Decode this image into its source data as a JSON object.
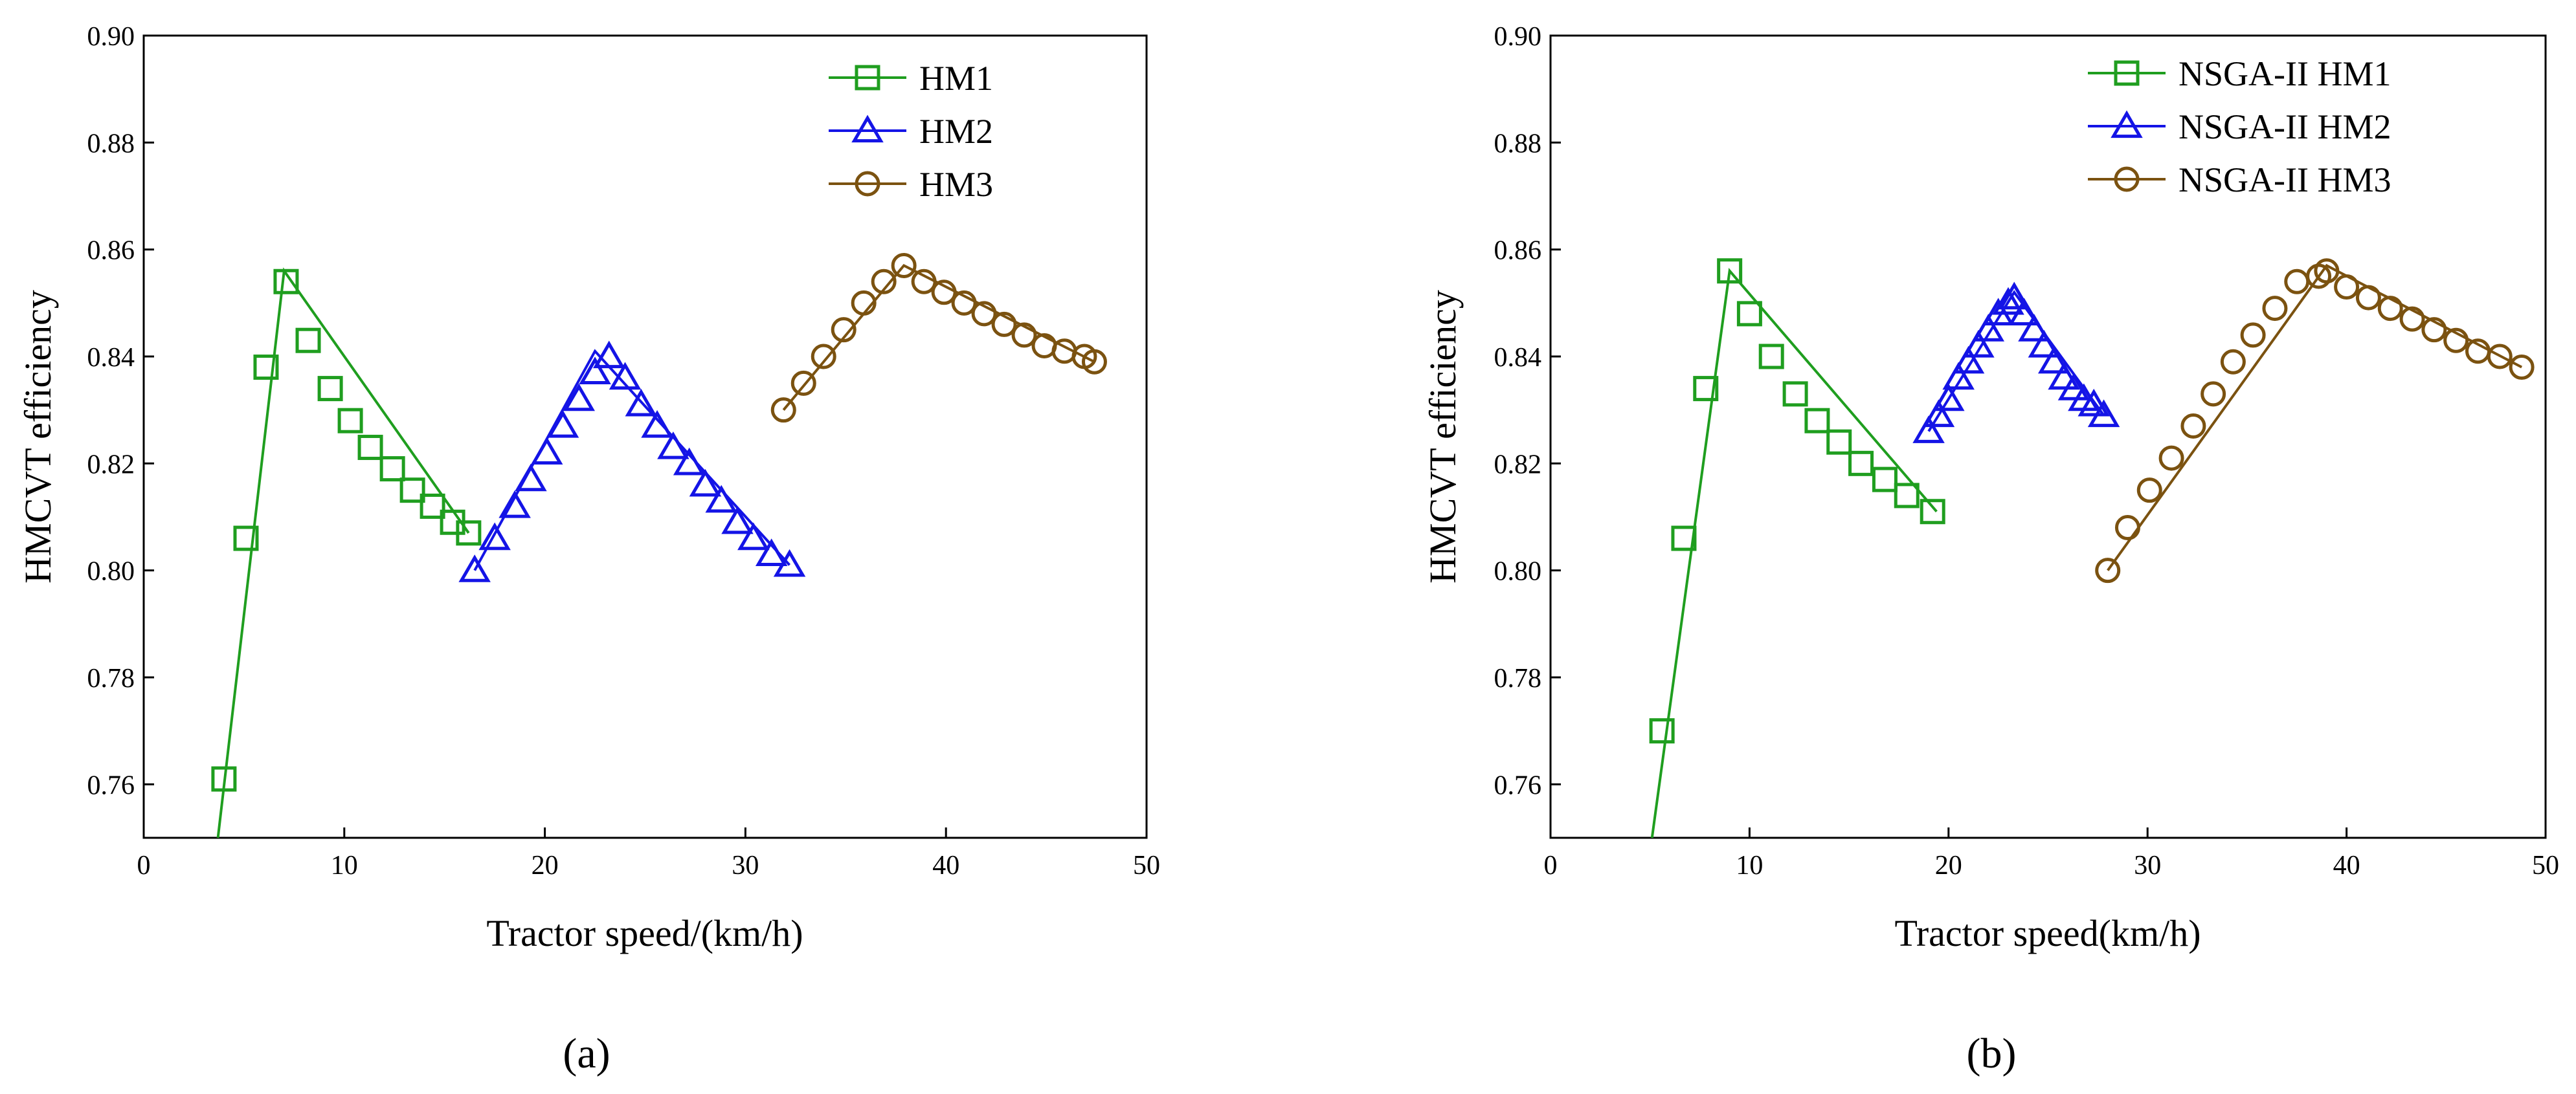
{
  "panel_labels": [
    "(a)",
    "(b)"
  ],
  "chart_data": [
    {
      "type": "line",
      "panel": "a",
      "xlabel": "Tractor speed/(km/h)",
      "ylabel": "HMCVT efficiency",
      "xlim": [
        0,
        50
      ],
      "ylim": [
        0.75,
        0.9
      ],
      "xticks": [
        0,
        10,
        20,
        30,
        40,
        50
      ],
      "yticks": [
        0.76,
        0.78,
        0.8,
        0.82,
        0.84,
        0.86,
        0.88,
        0.9
      ],
      "legend_position": "top-right",
      "series": [
        {
          "name": "HM1",
          "color": "#1f9e1f",
          "marker": "square",
          "x": [
            4.0,
            5.1,
            6.1,
            7.1,
            8.2,
            9.3,
            10.3,
            11.3,
            12.4,
            13.4,
            14.4,
            15.4,
            16.2
          ],
          "y": [
            0.761,
            0.806,
            0.838,
            0.854,
            0.843,
            0.834,
            0.828,
            0.823,
            0.819,
            0.815,
            0.812,
            0.809,
            0.807
          ],
          "line_x": [
            3.7,
            7.0,
            16.2
          ],
          "line_y": [
            0.75,
            0.856,
            0.807
          ]
        },
        {
          "name": "HM2",
          "color": "#1414e6",
          "marker": "triangle",
          "x": [
            16.5,
            17.5,
            18.5,
            19.3,
            20.1,
            20.9,
            21.7,
            22.5,
            23.2,
            24.0,
            24.8,
            25.6,
            26.4,
            27.2,
            28.0,
            28.8,
            29.6,
            30.4,
            31.3,
            32.2
          ],
          "y": [
            0.8,
            0.806,
            0.812,
            0.817,
            0.822,
            0.827,
            0.832,
            0.837,
            0.84,
            0.836,
            0.831,
            0.827,
            0.823,
            0.82,
            0.816,
            0.813,
            0.809,
            0.806,
            0.803,
            0.801
          ],
          "line_x": [
            16.5,
            22.5,
            32.2
          ],
          "line_y": [
            0.8,
            0.841,
            0.801
          ]
        },
        {
          "name": "HM3",
          "color": "#7b5210",
          "marker": "circle",
          "x": [
            31.9,
            32.9,
            33.9,
            34.9,
            35.9,
            36.9,
            37.9,
            38.9,
            39.9,
            40.9,
            41.9,
            42.9,
            43.9,
            44.9,
            45.9,
            46.9,
            47.4
          ],
          "y": [
            0.83,
            0.835,
            0.84,
            0.845,
            0.85,
            0.854,
            0.857,
            0.854,
            0.852,
            0.85,
            0.848,
            0.846,
            0.844,
            0.842,
            0.841,
            0.84,
            0.839
          ],
          "line_x": [
            31.9,
            37.9,
            47.4
          ],
          "line_y": [
            0.83,
            0.857,
            0.839
          ]
        }
      ]
    },
    {
      "type": "line",
      "panel": "b",
      "xlabel": "Tractor speed(km/h)",
      "ylabel": "HMCVT efficiency",
      "xlim": [
        0,
        50
      ],
      "ylim": [
        0.75,
        0.9
      ],
      "xticks": [
        0,
        10,
        20,
        30,
        40,
        50
      ],
      "yticks": [
        0.76,
        0.78,
        0.8,
        0.82,
        0.84,
        0.86,
        0.88,
        0.9
      ],
      "legend_position": "top-right",
      "series": [
        {
          "name": "NSGA-II HM1",
          "color": "#1f9e1f",
          "marker": "square",
          "x": [
            5.6,
            6.7,
            7.8,
            9.0,
            10.0,
            11.1,
            12.3,
            13.4,
            14.5,
            15.6,
            16.8,
            17.9,
            19.2
          ],
          "y": [
            0.77,
            0.806,
            0.834,
            0.856,
            0.848,
            0.84,
            0.833,
            0.828,
            0.824,
            0.82,
            0.817,
            0.814,
            0.811
          ],
          "line_x": [
            5.1,
            9.0,
            19.4
          ],
          "line_y": [
            0.75,
            0.856,
            0.811
          ]
        },
        {
          "name": "NSGA-II HM2",
          "color": "#1414e6",
          "marker": "triangle",
          "x": [
            19.0,
            19.5,
            20.0,
            20.5,
            21.0,
            21.5,
            22.0,
            22.5,
            23.0,
            23.3,
            23.8,
            24.3,
            24.8,
            25.3,
            25.8,
            26.3,
            26.8,
            27.3,
            27.8
          ],
          "y": [
            0.826,
            0.829,
            0.832,
            0.836,
            0.839,
            0.842,
            0.845,
            0.848,
            0.85,
            0.851,
            0.848,
            0.845,
            0.842,
            0.839,
            0.836,
            0.834,
            0.832,
            0.831,
            0.829
          ],
          "line_x": [
            19.0,
            23.3,
            27.8
          ],
          "line_y": [
            0.826,
            0.852,
            0.829
          ]
        },
        {
          "name": "NSGA-II HM3",
          "color": "#7b5210",
          "marker": "circle",
          "x": [
            28.0,
            29.0,
            30.1,
            31.2,
            32.3,
            33.3,
            34.3,
            35.3,
            36.4,
            37.5,
            38.6,
            39.0,
            40.0,
            41.1,
            42.2,
            43.3,
            44.4,
            45.5,
            46.6,
            47.7,
            48.8
          ],
          "y": [
            0.8,
            0.808,
            0.815,
            0.821,
            0.827,
            0.833,
            0.839,
            0.844,
            0.849,
            0.854,
            0.855,
            0.856,
            0.853,
            0.851,
            0.849,
            0.847,
            0.845,
            0.843,
            0.841,
            0.84,
            0.838
          ],
          "line_x": [
            28.0,
            39.0,
            48.8
          ],
          "line_y": [
            0.8,
            0.857,
            0.838
          ]
        }
      ]
    }
  ]
}
